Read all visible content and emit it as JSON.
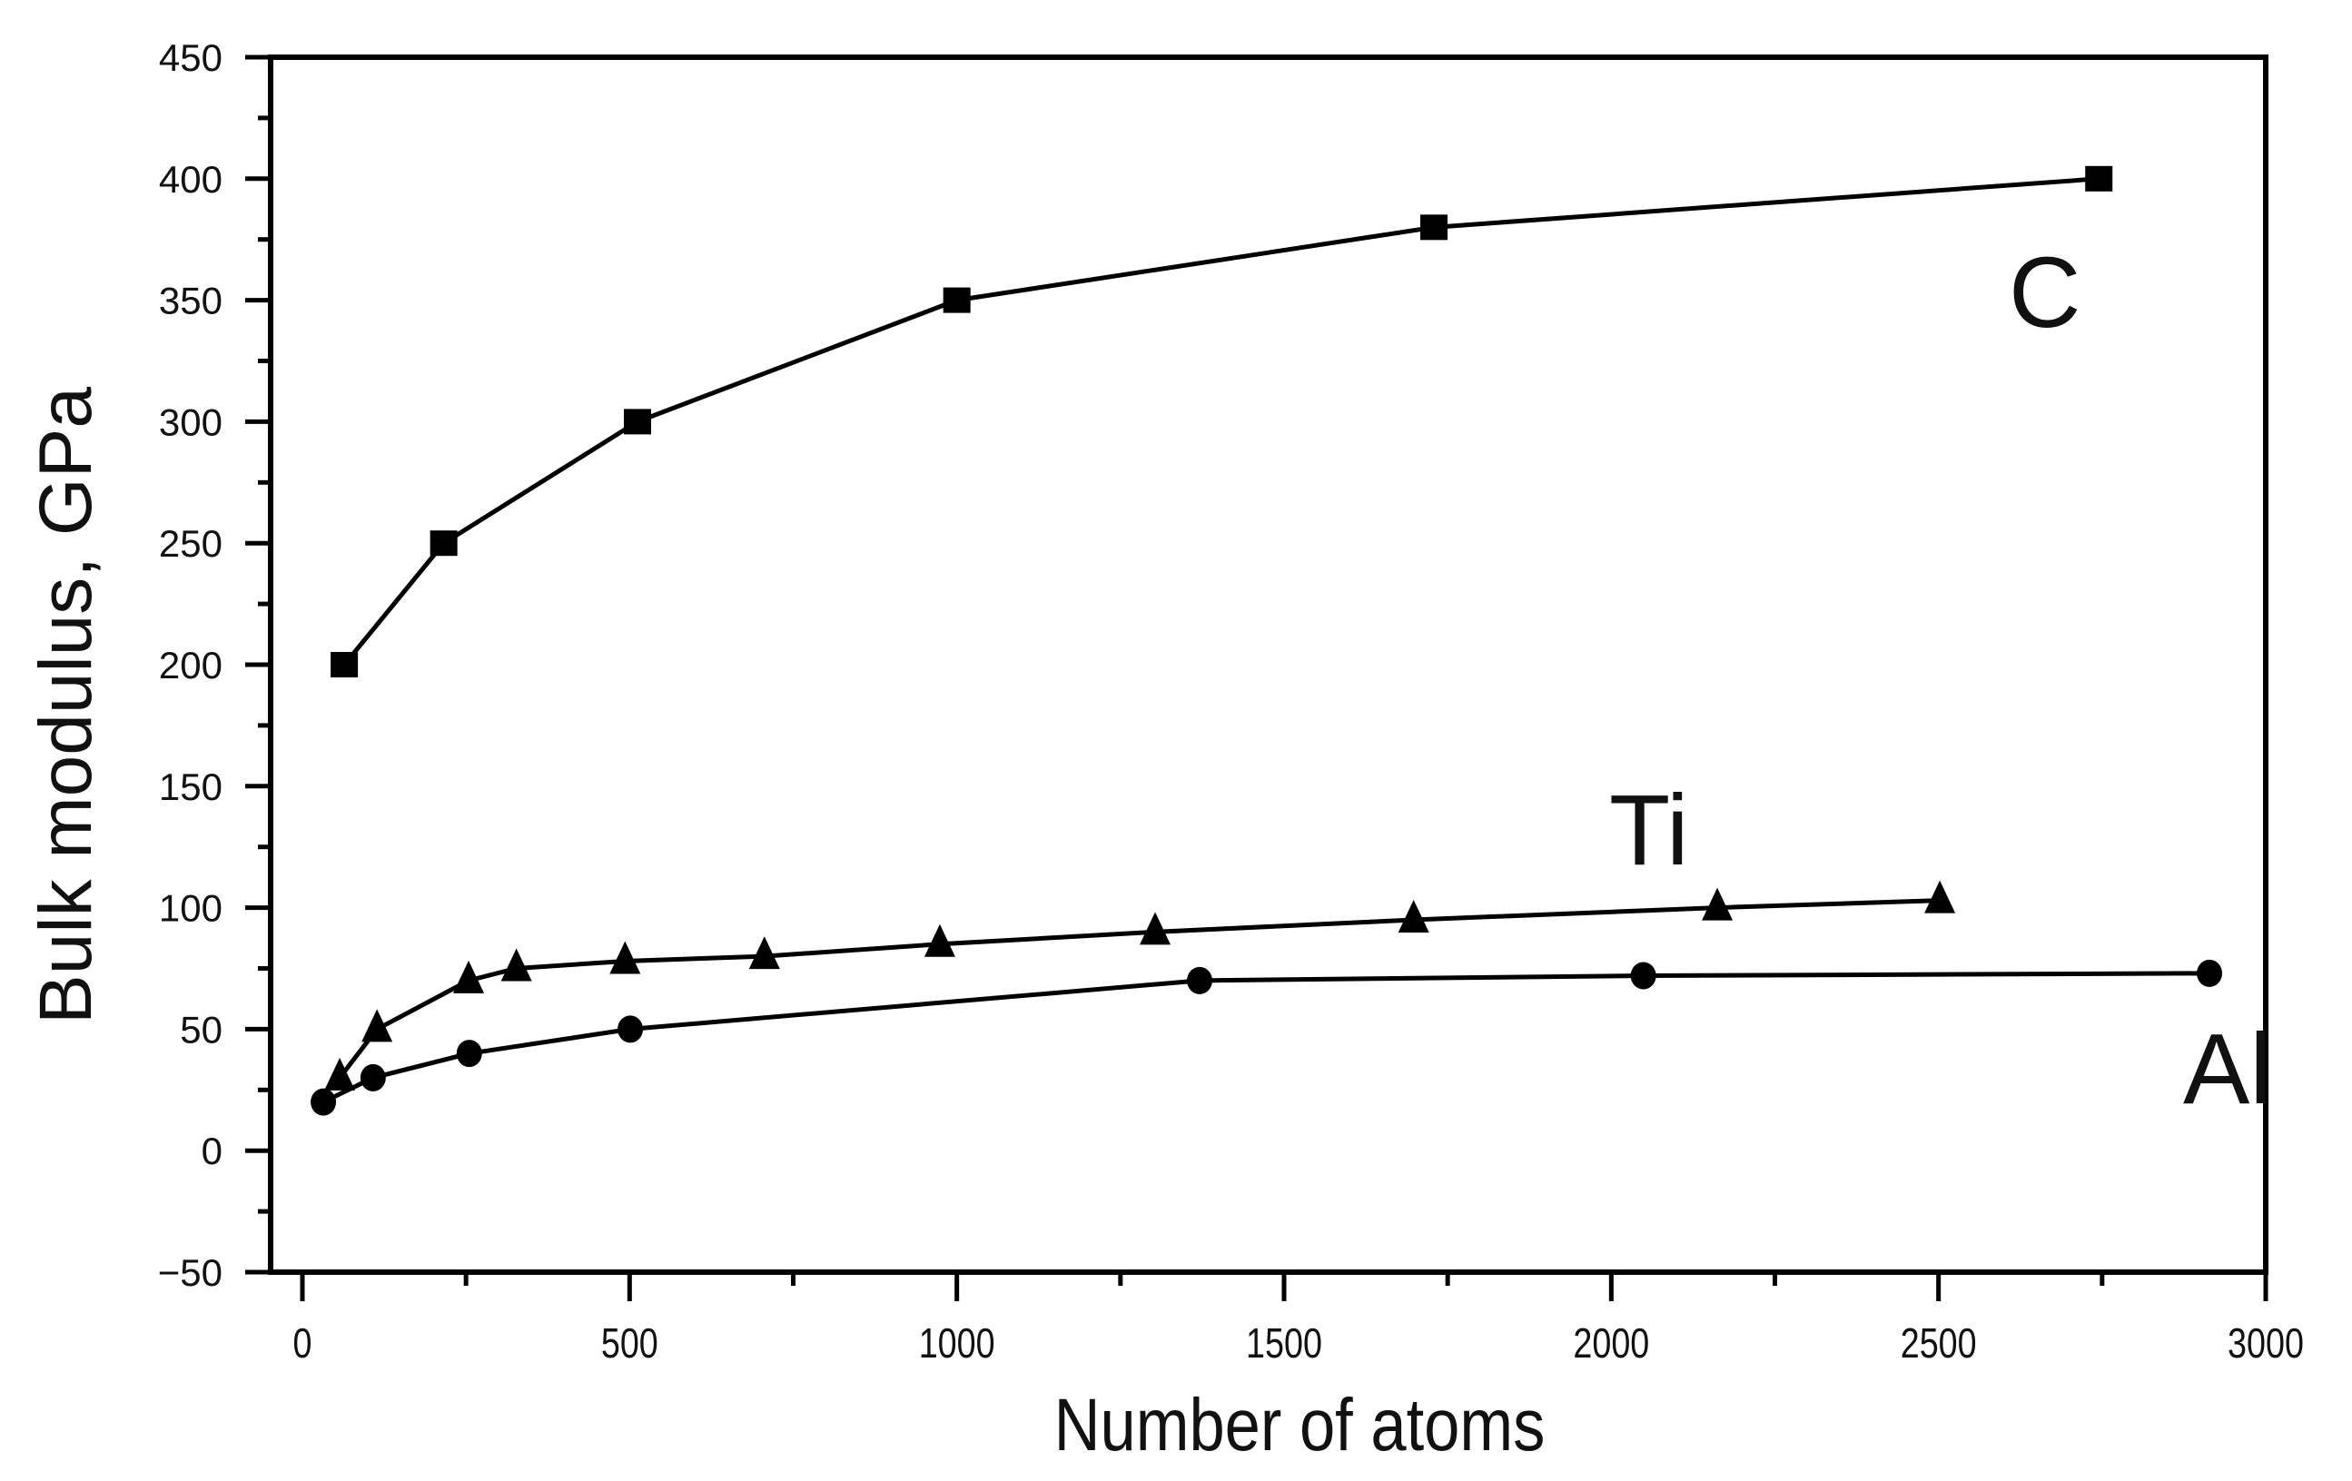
{
  "chart_data": {
    "type": "line",
    "title": "",
    "xlabel": "Number of atoms",
    "ylabel": "Bulk modulus, GPa",
    "xlim": [
      -70,
      3000
    ],
    "ylim": [
      -50,
      450
    ],
    "x_ticks": [
      0,
      500,
      1000,
      1500,
      2000,
      2500,
      3000
    ],
    "x_tick_labels": [
      "0",
      "500",
      "1000",
      "1500",
      "2000",
      "2500",
      "3000"
    ],
    "x_minor_step": 250,
    "y_ticks": [
      -50,
      0,
      50,
      100,
      150,
      200,
      250,
      300,
      350,
      400,
      450
    ],
    "y_tick_labels": [
      "−50",
      "0",
      "50",
      "100",
      "150",
      "200",
      "250",
      "300",
      "350",
      "400",
      "450"
    ],
    "y_minor_step": 25,
    "grid": false,
    "legend": "none (inline series labels)",
    "series": [
      {
        "name": "C",
        "marker": "square",
        "color": "#000000",
        "x": [
          64,
          216,
          512,
          1000,
          1729,
          2745
        ],
        "y": [
          200,
          250,
          300,
          350,
          380,
          400
        ],
        "label_pos": {
          "x": 2540,
          "y": 355
        }
      },
      {
        "name": "Ti",
        "marker": "triangle",
        "color": "#000000",
        "x": [
          57,
          114,
          254,
          327,
          493,
          706,
          974,
          1303,
          1698,
          2162,
          2502
        ],
        "y": [
          30,
          50,
          70,
          75,
          78,
          80,
          85,
          90,
          95,
          100,
          103
        ],
        "label_pos": {
          "x": 2130,
          "y": 130
        }
      },
      {
        "name": "Al",
        "marker": "circle",
        "color": "#000000",
        "x": [
          32,
          108,
          255,
          501,
          1371,
          2049,
          2914
        ],
        "y": [
          20,
          30,
          40,
          50,
          70,
          72,
          73
        ],
        "label_pos": {
          "x": 2830,
          "y": 19
        }
      }
    ]
  },
  "labels": {
    "x_axis_title": "Number of atoms",
    "y_axis_title": "Bulk modulus, GPa",
    "series_C": "C",
    "series_Ti": "Ti",
    "series_Al": "Al"
  }
}
